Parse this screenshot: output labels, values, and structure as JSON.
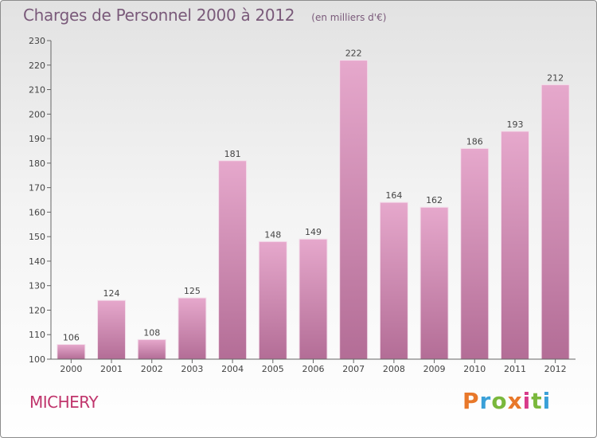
{
  "header": {
    "title": "Charges de Personnel 2000 à 2012",
    "subtitle": "(en milliers d'€)"
  },
  "footer": {
    "town": "MICHERY",
    "brand": "Proxiti",
    "brand_colors": [
      "#e8782a",
      "#3aa0d8",
      "#7ab83c",
      "#e8782a",
      "#d83a8a",
      "#7ab83c",
      "#3aa0d8"
    ]
  },
  "colors": {
    "bar_top": "#e6a8cc",
    "bar_bottom": "#b36d96",
    "axis": "#666666",
    "text": "#444444",
    "title": "#7a5a7a",
    "town": "#c0356c"
  },
  "chart_data": {
    "type": "bar",
    "title": "Charges de Personnel 2000 à 2012",
    "subtitle": "(en milliers d'€)",
    "categories": [
      "2000",
      "2001",
      "2002",
      "2003",
      "2004",
      "2005",
      "2006",
      "2007",
      "2008",
      "2009",
      "2010",
      "2011",
      "2012"
    ],
    "values": [
      106,
      124,
      108,
      125,
      181,
      148,
      149,
      222,
      164,
      162,
      186,
      193,
      212
    ],
    "ylim": [
      100,
      230
    ],
    "yticks": [
      100,
      110,
      120,
      130,
      140,
      150,
      160,
      170,
      180,
      190,
      200,
      210,
      220,
      230
    ],
    "grid": false,
    "legend": "none",
    "data_labels": true
  }
}
